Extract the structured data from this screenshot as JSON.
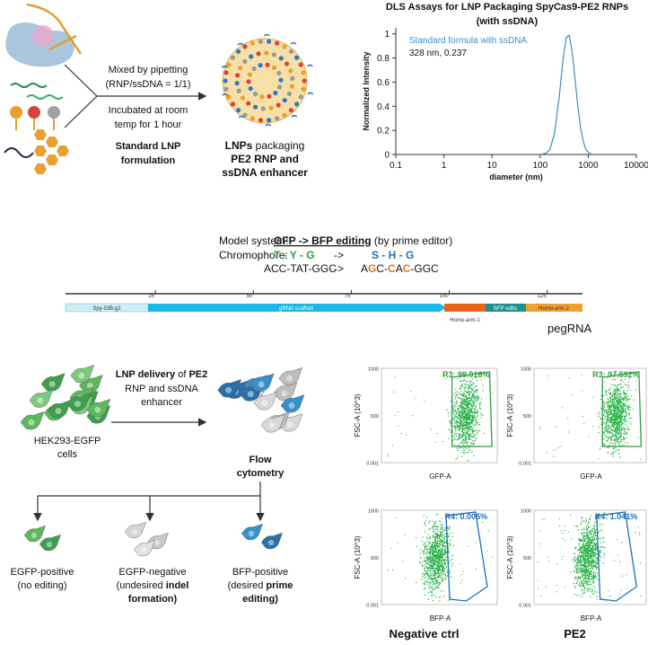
{
  "formulation": {
    "step1": [
      "Mixed by pipetting",
      "(RNP/ssDNA = 1/1)"
    ],
    "step2": [
      "Incubated at room",
      "temp for 1 hour"
    ],
    "method": [
      "Standard LNP",
      "formulation"
    ],
    "product": {
      "line1": [
        "LNPs",
        " packaging"
      ],
      "line2": "PE2 RNP and",
      "line3": "ssDNA enhancer"
    }
  },
  "chart_data": {
    "type": "line",
    "title": "DLS Assays for LNP Packaging SpyCas9-PE2 RNPs (with ssDNA)",
    "x_label": "diameter (nm)",
    "y_label": "Normalized Intensity",
    "x_log": true,
    "xlim": [
      0.1,
      10000
    ],
    "xticks": [
      0.1,
      1,
      10,
      100,
      1000,
      10000
    ],
    "ylim": [
      0,
      1.05
    ],
    "yticks": [
      0,
      0.2,
      0.4,
      0.6,
      0.8,
      1
    ],
    "x": [
      100,
      130,
      160,
      200,
      250,
      300,
      350,
      400,
      450,
      500,
      600,
      700,
      800,
      900,
      1000,
      1200
    ],
    "series": [
      {
        "name": "Standard formula with ssDNA",
        "color": "#3d8fc6",
        "values": [
          0,
          0.01,
          0.04,
          0.18,
          0.48,
          0.79,
          0.97,
          0.99,
          0.89,
          0.73,
          0.42,
          0.21,
          0.1,
          0.04,
          0.02,
          0
        ]
      }
    ],
    "annotation": "328 nm, 0.237"
  },
  "model_system": {
    "label": "Model system:",
    "title": "GFP -> BFP editing",
    "note": "(by prime editor)",
    "chromophore_label": "Chromophore:",
    "from_aa": "T - Y - G",
    "arrow": "->",
    "to_aa": "S - H - G",
    "from_codons": "ACC-TAT-GGC",
    "to_codons": [
      "A",
      "G",
      "C-",
      "C",
      "A",
      "C",
      "-GGC"
    ]
  },
  "pegrna_map": {
    "xlim": [
      0,
      134
    ],
    "ticks": [
      25,
      50,
      75,
      100,
      125
    ],
    "features": [
      "Spy-GtB-g1",
      "gRNA scaffold",
      "Homo-arm-1",
      "BFP edits",
      "Homo-arm-2"
    ],
    "label": "pegRNA"
  },
  "workflow": {
    "delivery": {
      "line1": [
        "LNP delivery",
        " of ",
        "PE2"
      ],
      "line2": "RNP and ssDNA",
      "line3": "enhancer"
    },
    "cells": [
      "HEK293-EGFP",
      "cells"
    ],
    "flow": [
      "Flow",
      "cytometry"
    ],
    "outcomes": [
      {
        "lines": [
          [
            "EGFP-positive"
          ],
          [
            "(no editing)"
          ]
        ]
      },
      {
        "lines": [
          [
            "EGFP-negative"
          ],
          [
            "(undesired ",
            "indel"
          ],
          [
            "formation",
            ")"
          ]
        ]
      },
      {
        "lines": [
          [
            "BFP-positive"
          ],
          [
            "(desired ",
            "prime"
          ],
          [
            "editing",
            ")"
          ]
        ]
      }
    ]
  },
  "flow_cytometry": {
    "y_label": "FSC-A (10^3)",
    "yticks": [
      "1000",
      "500",
      "0.001"
    ],
    "panels": [
      {
        "x_label": "GFP-A",
        "gate": "R3: 99.018%"
      },
      {
        "x_label": "GFP-A",
        "gate": "R3: 97.592%"
      },
      {
        "x_label": "BFP-A",
        "gate": "R4: 0.005%"
      },
      {
        "x_label": "BFP-A",
        "gate": "R4: 1.041%"
      }
    ],
    "columns": [
      "Negative ctrl",
      "PE2"
    ]
  }
}
